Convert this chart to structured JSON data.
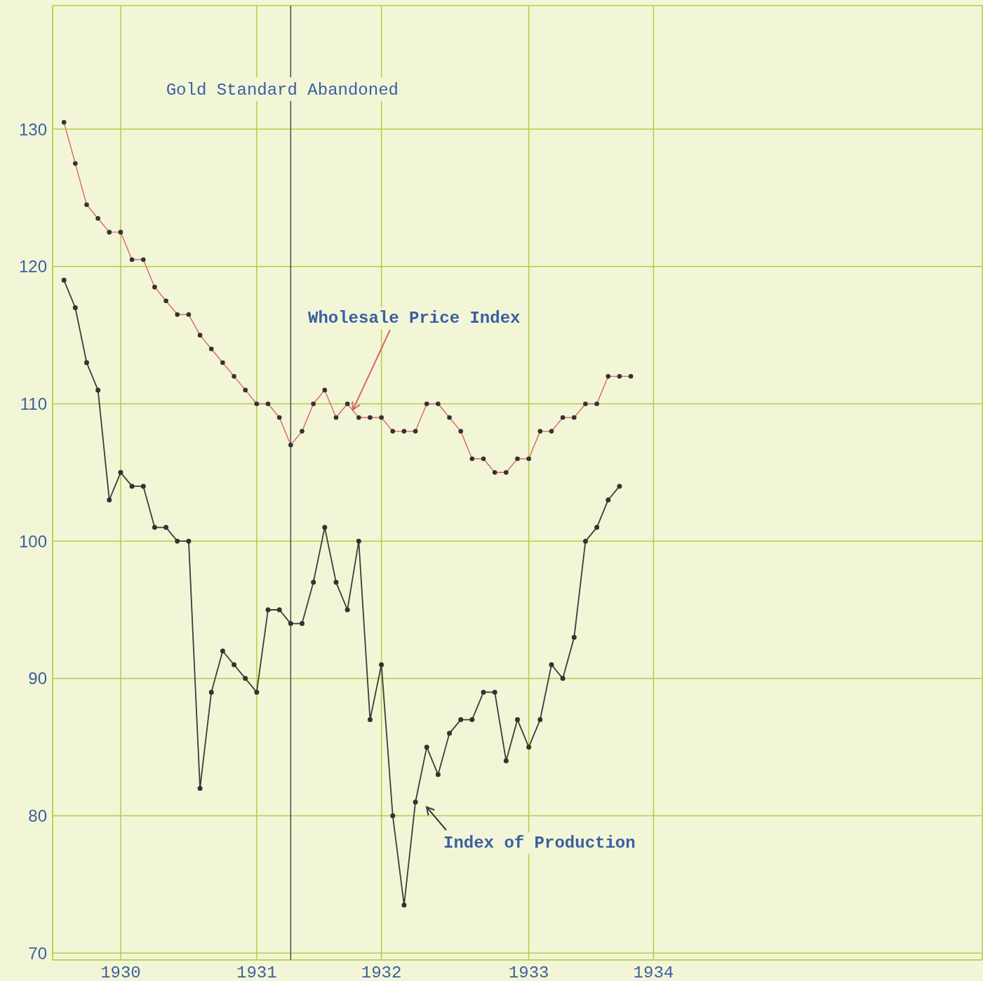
{
  "chart_data": {
    "type": "line",
    "x": [
      "1930-01",
      "1930-02",
      "1930-03",
      "1930-04",
      "1930-05",
      "1930-06",
      "1930-07",
      "1930-08",
      "1930-09",
      "1930-10",
      "1930-11",
      "1930-12",
      "1931-01",
      "1931-02",
      "1931-03",
      "1931-04",
      "1931-05",
      "1931-06",
      "1931-07",
      "1931-08",
      "1931-09",
      "1931-10",
      "1931-11",
      "1931-12",
      "1932-01",
      "1932-02",
      "1932-03",
      "1932-04",
      "1932-05",
      "1932-06",
      "1932-07",
      "1932-08",
      "1932-09",
      "1932-10",
      "1932-11",
      "1932-12",
      "1933-01",
      "1933-02",
      "1933-03",
      "1933-04",
      "1933-05",
      "1933-06",
      "1933-07",
      "1933-08",
      "1933-09",
      "1933-10",
      "1933-11",
      "1933-12",
      "1934-01",
      "1934-02",
      "1934-03"
    ],
    "series": [
      {
        "name": "Wholesale Price Index",
        "color": "#d9666a",
        "values": [
          130.5,
          127.5,
          124.5,
          123.5,
          122.5,
          122.5,
          120.5,
          120.5,
          118.5,
          117.5,
          116.5,
          116.5,
          115,
          114,
          113,
          112,
          111,
          110,
          110,
          109,
          107,
          108,
          110,
          111,
          109,
          110,
          109,
          109,
          109,
          108,
          108,
          108,
          110,
          110,
          109,
          108,
          106,
          106,
          105,
          105,
          106,
          106,
          108,
          108,
          109,
          109,
          110,
          110,
          112,
          112,
          112
        ]
      },
      {
        "name": "Index of Production",
        "color": "#3c3c3c",
        "values": [
          119,
          117,
          113,
          111,
          103,
          105,
          104,
          104,
          101,
          101,
          100,
          100,
          82,
          89,
          92,
          91,
          90,
          89,
          95,
          95,
          94,
          94,
          97,
          101,
          97,
          95,
          100,
          87,
          91,
          80,
          73.5,
          81,
          85,
          83,
          86,
          87,
          87,
          89,
          89,
          84,
          87,
          85,
          87,
          91,
          90,
          93,
          100,
          101,
          103,
          104,
          null
        ]
      }
    ],
    "xlim": [
      "1929-12",
      "1936-10"
    ],
    "xticks": [
      {
        "value": "1930-06",
        "label": "1930"
      },
      {
        "value": "1931-06",
        "label": "1931"
      },
      {
        "value": "1932-05",
        "label": "1932"
      },
      {
        "value": "1933-06",
        "label": "1933"
      },
      {
        "value": "1934-05",
        "label": "1934"
      }
    ],
    "ylim": [
      69.5,
      139
    ],
    "yticks": [
      70,
      80,
      90,
      100,
      110,
      120,
      130
    ],
    "ref_lines": [
      {
        "axis": "x",
        "value": "1931-09",
        "label": "Gold Standard Abandoned",
        "color": "#4a4a4a"
      }
    ],
    "grid": true,
    "marker": "circle",
    "line_style": "solid"
  }
}
